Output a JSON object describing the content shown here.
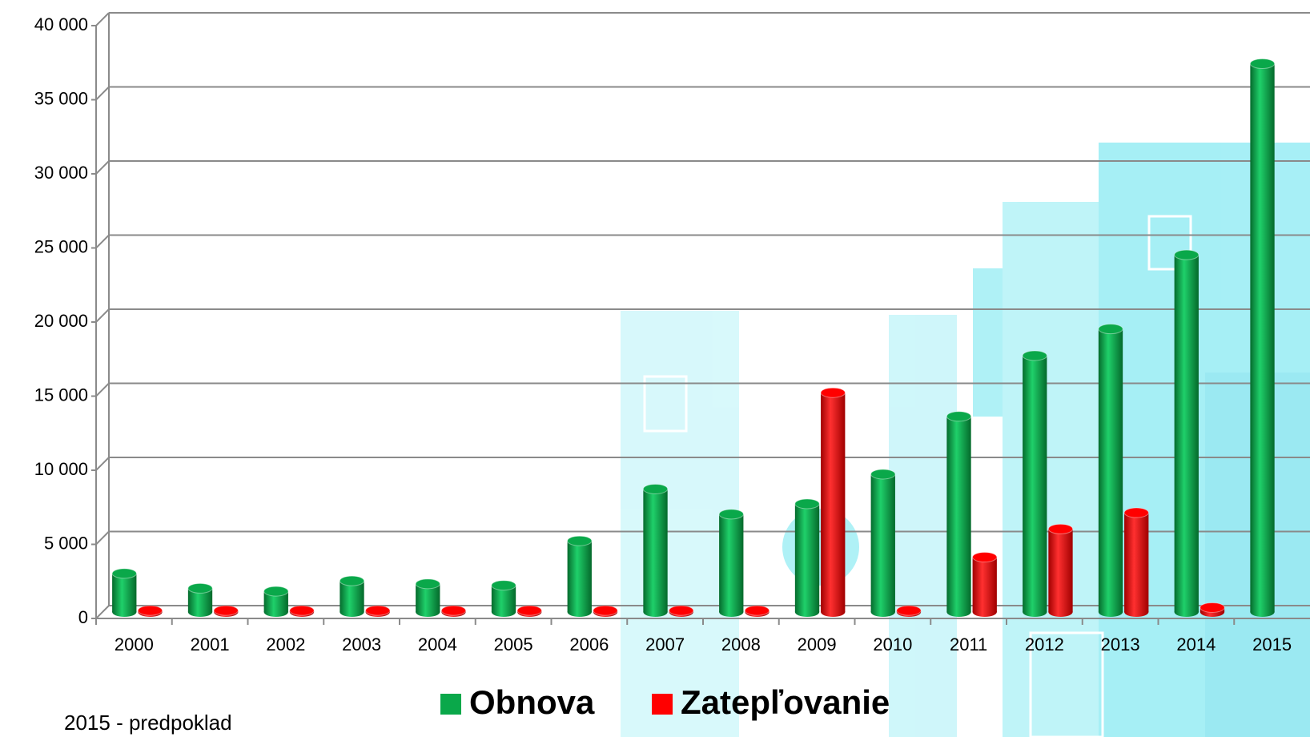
{
  "chart_data": {
    "type": "bar",
    "categories": [
      "2000",
      "2001",
      "2002",
      "2003",
      "2004",
      "2005",
      "2006",
      "2007",
      "2008",
      "2009",
      "2010",
      "2011",
      "2012",
      "2013",
      "2014",
      "2015"
    ],
    "series": [
      {
        "name": "Obnova",
        "color": "#0aa84a",
        "values": [
          2600,
          1600,
          1400,
          2100,
          1900,
          1800,
          4800,
          8300,
          6600,
          7300,
          9300,
          13200,
          17300,
          19100,
          24100,
          37000
        ]
      },
      {
        "name": "Zatepľovanie",
        "color": "#ff0000",
        "values": [
          100,
          100,
          100,
          100,
          100,
          100,
          100,
          100,
          100,
          14800,
          100,
          3700,
          5600,
          6700,
          300,
          null
        ]
      }
    ],
    "ylim": [
      0,
      40000
    ],
    "yticks": [
      0,
      {
        "value": 5000,
        "label": "5 000"
      },
      {
        "value": 10000,
        "label": "10 000"
      },
      {
        "value": 15000,
        "label": "15 000"
      },
      {
        "value": 20000,
        "label": "20 000"
      },
      {
        "value": 25000,
        "label": "25 000"
      },
      {
        "value": 30000,
        "label": "30 000"
      },
      {
        "value": 35000,
        "label": "35 000"
      },
      {
        "value": 40000,
        "label": "40 000"
      }
    ],
    "grid": true,
    "legend": "bottom",
    "annotation": "2015 - predpoklad"
  }
}
